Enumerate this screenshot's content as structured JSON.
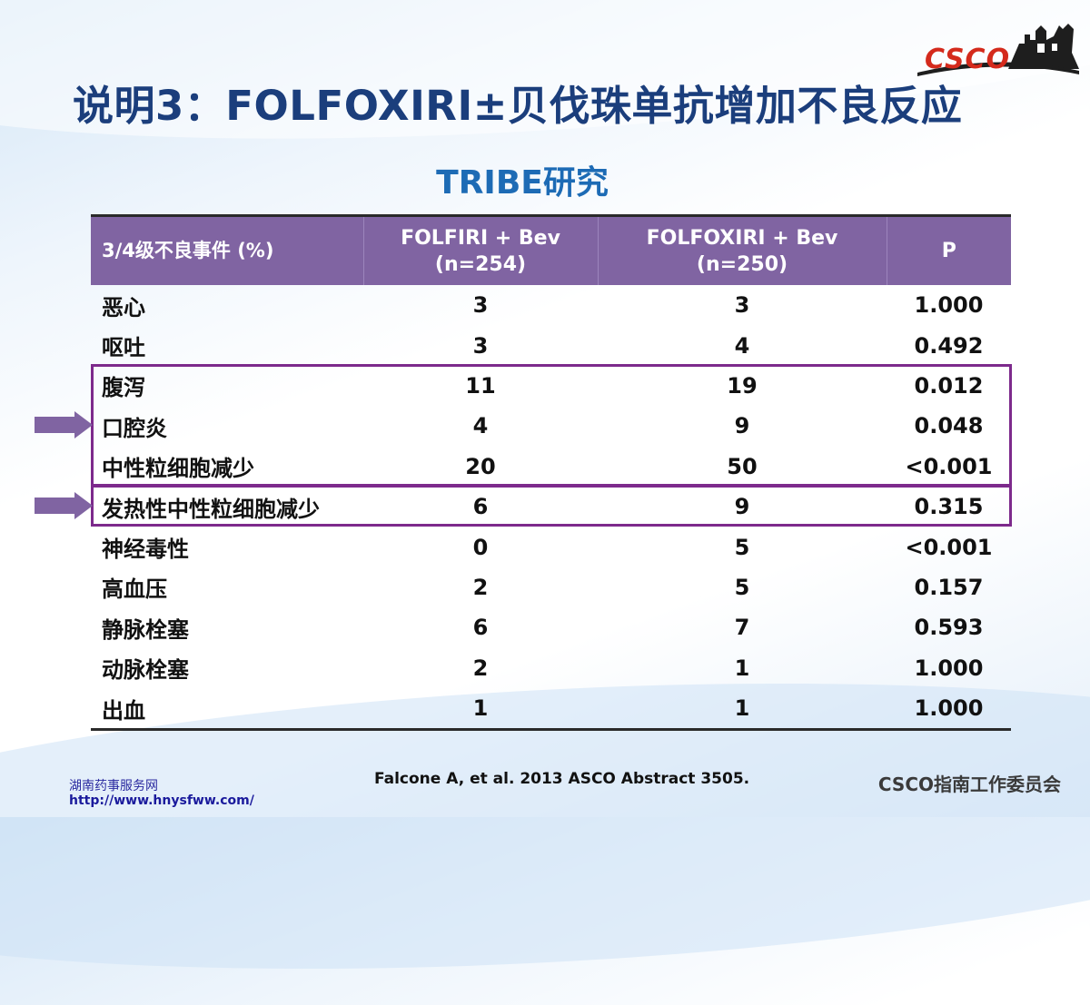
{
  "logo": {
    "text": "CSCO"
  },
  "title": "说明3：FOLFOXIRI±贝伐珠单抗增加不良反应",
  "subtitle": "TRIBE研究",
  "table": {
    "headers": [
      {
        "line1": "3/4级不良事件 (%)",
        "line2": ""
      },
      {
        "line1": "FOLFIRI + Bev",
        "line2": "(n=254)"
      },
      {
        "line1": "FOLFOXIRI + Bev",
        "line2": "(n=250)"
      },
      {
        "line1": "P",
        "line2": ""
      }
    ],
    "rows": [
      [
        "恶心",
        "3",
        "3",
        "1.000"
      ],
      [
        "呕吐",
        "3",
        "4",
        "0.492"
      ],
      [
        "腹泻",
        "11",
        "19",
        "0.012"
      ],
      [
        "口腔炎",
        "4",
        "9",
        "0.048"
      ],
      [
        "中性粒细胞减少",
        "20",
        "50",
        "<0.001"
      ],
      [
        "发热性中性粒细胞减少",
        "6",
        "9",
        "0.315"
      ],
      [
        "神经毒性",
        "0",
        "5",
        "<0.001"
      ],
      [
        "高血压",
        "2",
        "5",
        "0.157"
      ],
      [
        "静脉栓塞",
        "6",
        "7",
        "0.593"
      ],
      [
        "动脉栓塞",
        "2",
        "1",
        "1.000"
      ],
      [
        "出血",
        "1",
        "1",
        "1.000"
      ]
    ]
  },
  "colors": {
    "header_bg": "#8064a2",
    "highlight": "#7d2a8c",
    "arrow": "#8064a2",
    "title": "#1b3e7c",
    "subtitle": "#1d6bb5"
  },
  "reference": "Falcone A, et al. 2013 ASCO  Abstract 3505.",
  "watermark": {
    "line1": "湖南药事服务网",
    "line2": "http://www.hnysfww.com/"
  },
  "footer_org": "CSCO指南工作委员会"
}
